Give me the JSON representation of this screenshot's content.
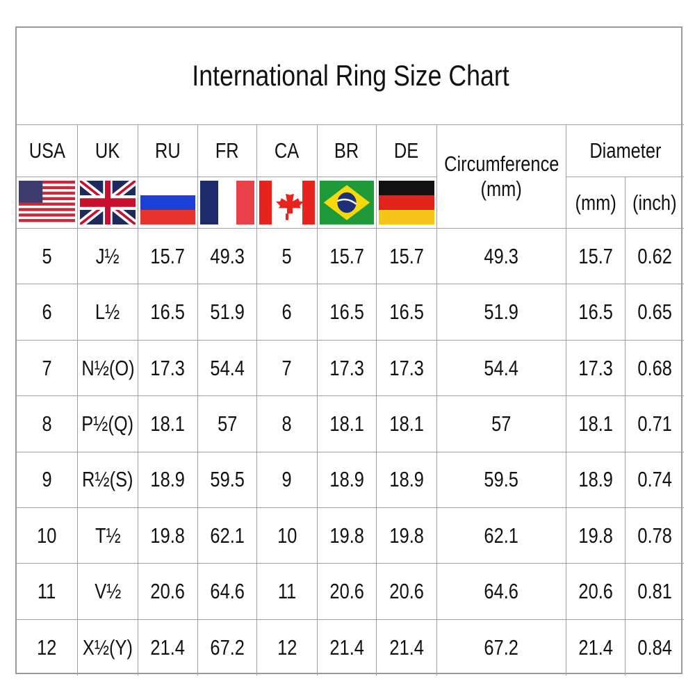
{
  "title": "International Ring Size Chart",
  "headers": {
    "countries": [
      {
        "code": "USA",
        "flag": "usa-flag-icon"
      },
      {
        "code": "UK",
        "flag": "uk-flag-icon"
      },
      {
        "code": "RU",
        "flag": "russia-flag-icon"
      },
      {
        "code": "FR",
        "flag": "france-flag-icon"
      },
      {
        "code": "CA",
        "flag": "canada-flag-icon"
      },
      {
        "code": "BR",
        "flag": "brazil-flag-icon"
      },
      {
        "code": "DE",
        "flag": "germany-flag-icon"
      }
    ],
    "circumference": "Circumference",
    "circumference_unit": "(mm)",
    "diameter": "Diameter",
    "diameter_mm": "(mm)",
    "diameter_inch": "(inch)"
  },
  "rows": [
    [
      "5",
      "J½",
      "15.7",
      "49.3",
      "5",
      "15.7",
      "15.7",
      "49.3",
      "15.7",
      "0.62"
    ],
    [
      "6",
      "L½",
      "16.5",
      "51.9",
      "6",
      "16.5",
      "16.5",
      "51.9",
      "16.5",
      "0.65"
    ],
    [
      "7",
      "N½(O)",
      "17.3",
      "54.4",
      "7",
      "17.3",
      "17.3",
      "54.4",
      "17.3",
      "0.68"
    ],
    [
      "8",
      "P½(Q)",
      "18.1",
      "57",
      "8",
      "18.1",
      "18.1",
      "57",
      "18.1",
      "0.71"
    ],
    [
      "9",
      "R½(S)",
      "18.9",
      "59.5",
      "9",
      "18.9",
      "18.9",
      "59.5",
      "18.9",
      "0.74"
    ],
    [
      "10",
      "T½",
      "19.8",
      "62.1",
      "10",
      "19.8",
      "19.8",
      "62.1",
      "19.8",
      "0.78"
    ],
    [
      "11",
      "V½",
      "20.6",
      "64.6",
      "11",
      "20.6",
      "20.6",
      "64.6",
      "20.6",
      "0.81"
    ],
    [
      "12",
      "X½(Y)",
      "21.4",
      "67.2",
      "12",
      "21.4",
      "21.4",
      "67.2",
      "21.4",
      "0.84"
    ]
  ]
}
